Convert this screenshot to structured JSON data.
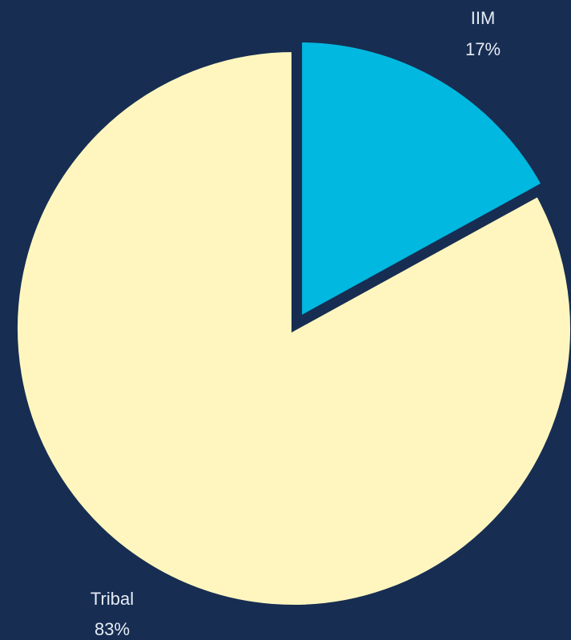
{
  "chart_data": {
    "type": "pie",
    "title": "",
    "slices": [
      {
        "label": "IIM",
        "value": 17,
        "display": "17%",
        "color": "#00b8e0",
        "exploded": true
      },
      {
        "label": "Tribal",
        "value": 83,
        "display": "83%",
        "color": "#fff6bf",
        "exploded": false
      }
    ],
    "legend": "none",
    "background": "#172d52"
  }
}
